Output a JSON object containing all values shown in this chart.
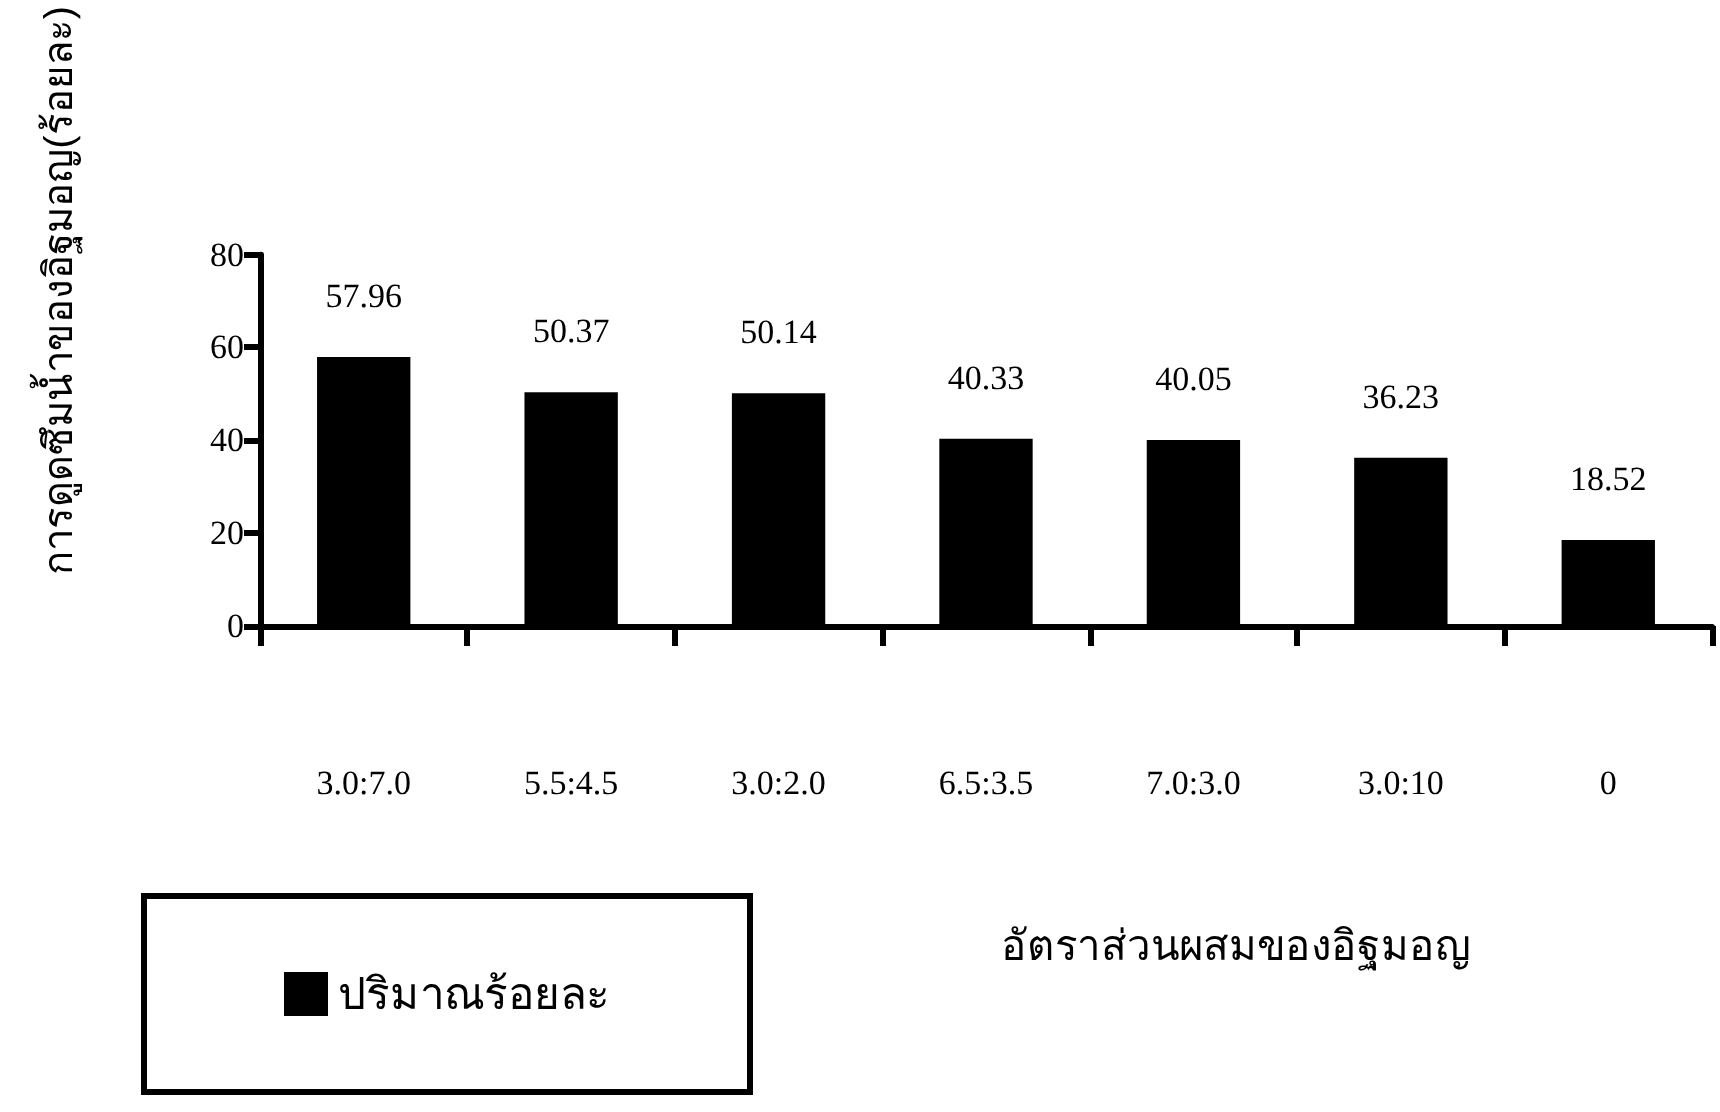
{
  "chart_data": {
    "type": "bar",
    "xlabel": "อัตราส่วนผสมของอิฐมอญ",
    "ylabel": "การดูดซึมน้ำของอิฐมอญ(ร้อยละ)",
    "categories": [
      "3.0:7.0",
      "5.5:4.5",
      "3.0:2.0",
      "6.5:3.5",
      "7.0:3.0",
      "3.0:10",
      "0"
    ],
    "series": [
      {
        "name": "ปริมาณร้อยละ",
        "color": "#000000",
        "values": [
          57.96,
          50.37,
          50.14,
          40.33,
          40.05,
          36.23,
          18.52
        ]
      }
    ],
    "ylim": [
      0,
      80
    ],
    "yticks": [
      0,
      20,
      40,
      60,
      80
    ],
    "data_labels": true,
    "grid": false,
    "legend": "bottom left"
  }
}
